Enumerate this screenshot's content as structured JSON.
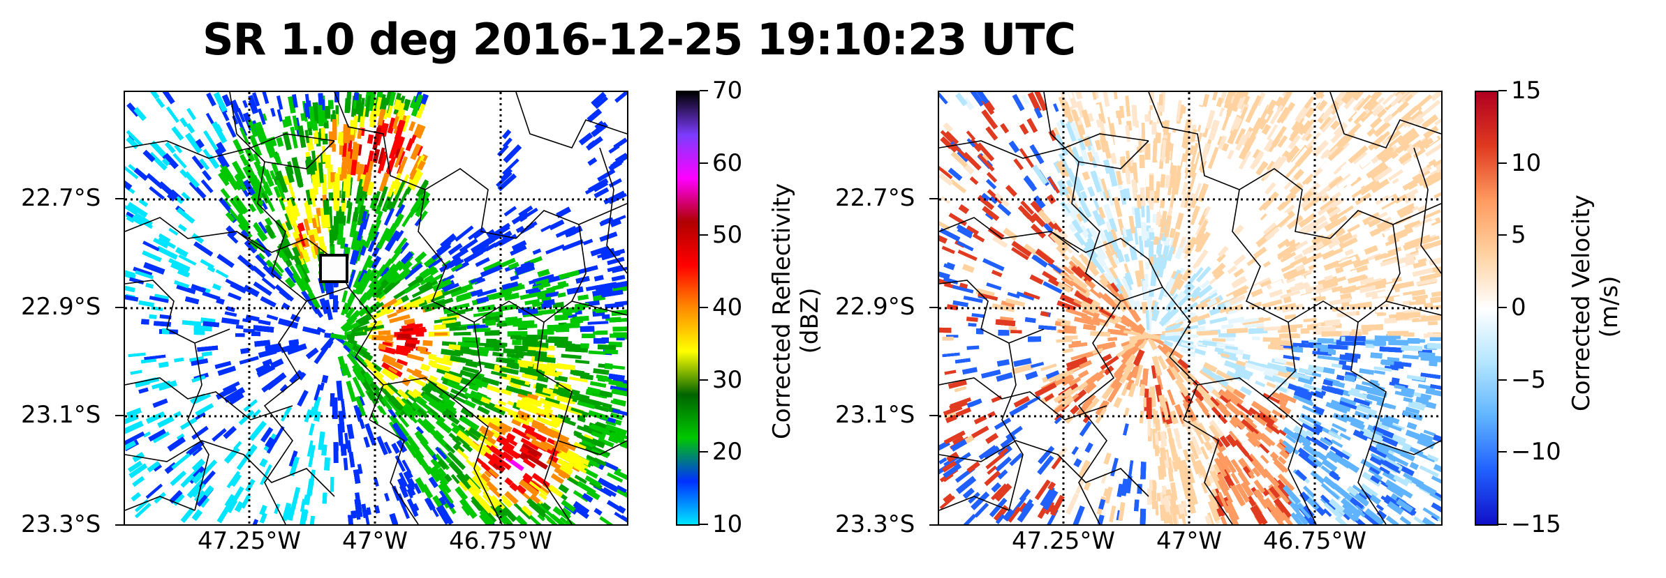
{
  "title": "SR 1.0 deg 2016-12-25 19:10:23 UTC",
  "map": {
    "lat_ticks": [
      "22.7°S",
      "22.9°S",
      "23.1°S",
      "23.3°S"
    ],
    "lon_ticks": [
      "47.25°W",
      "47°W",
      "46.75°W"
    ],
    "gridlines": "dotted"
  },
  "panels": [
    {
      "field": "Corrected Reflectivity",
      "colorbar": {
        "label_line1": "Corrected Reflectivity",
        "label_line2": "(dBZ)",
        "ticks": [
          "70",
          "60",
          "50",
          "40",
          "30",
          "20",
          "10"
        ],
        "range": [
          10,
          70
        ],
        "colormap": [
          "#00e5ff",
          "#0030ff",
          "#00c800",
          "#006400",
          "#ffff00",
          "#ff8c00",
          "#ff0000",
          "#b00000",
          "#ff00ff",
          "#7d3cff",
          "#000000"
        ]
      }
    },
    {
      "field": "Corrected Velocity",
      "colorbar": {
        "label_line1": "Corrected Velocity",
        "label_line2": "(m/s)",
        "ticks": [
          "15",
          "10",
          "5",
          "0",
          "−5",
          "−10",
          "−15"
        ],
        "range": [
          -15,
          15
        ],
        "colormap": [
          "#1010c8",
          "#2060ff",
          "#60b4ff",
          "#b4e6ff",
          "#ffffff",
          "#ffd2a0",
          "#ff9a60",
          "#e03a20",
          "#b00020"
        ]
      }
    }
  ]
}
